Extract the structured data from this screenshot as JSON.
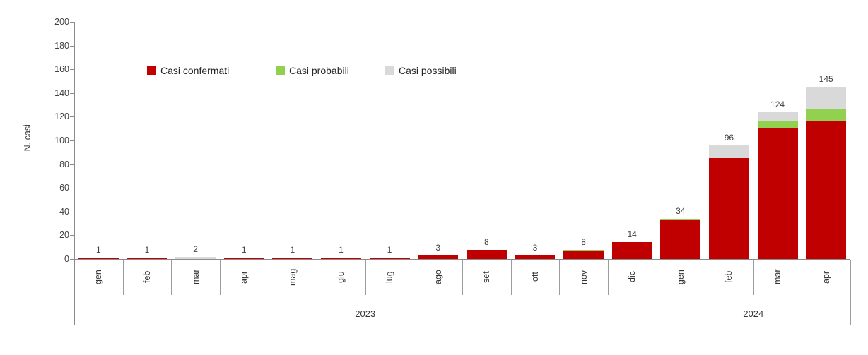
{
  "chart_data": {
    "type": "bar",
    "stacked": true,
    "title": "",
    "ylabel": "N. casi",
    "ylim": [
      0,
      200
    ],
    "ytick_step": 20,
    "grid": false,
    "legend_position": "top",
    "categories": [
      "gen",
      "feb",
      "mar",
      "apr",
      "mag",
      "giu",
      "lug",
      "ago",
      "set",
      "ott",
      "nov",
      "dic",
      "gen",
      "feb",
      "mar",
      "apr"
    ],
    "year_groups": [
      {
        "label": "2023",
        "span": 12
      },
      {
        "label": "2024",
        "span": 4
      }
    ],
    "series": [
      {
        "name": "Casi confermati",
        "color": "#C00000",
        "values": [
          1,
          1,
          0,
          1,
          1,
          1,
          1,
          3,
          8,
          3,
          7,
          14,
          33,
          85,
          111,
          116
        ]
      },
      {
        "name": "Casi probabili",
        "color": "#92D050",
        "values": [
          0,
          0,
          0,
          0,
          0,
          0,
          0,
          0,
          0,
          0,
          1,
          0,
          1,
          0,
          5,
          10
        ]
      },
      {
        "name": "Casi possibili",
        "color": "#D9D9D9",
        "values": [
          0,
          0,
          2,
          0,
          0,
          0,
          0,
          0,
          0,
          0,
          0,
          0,
          0,
          11,
          8,
          19
        ]
      }
    ],
    "totals": [
      1,
      1,
      2,
      1,
      1,
      1,
      1,
      3,
      8,
      3,
      8,
      14,
      34,
      96,
      124,
      145
    ]
  }
}
